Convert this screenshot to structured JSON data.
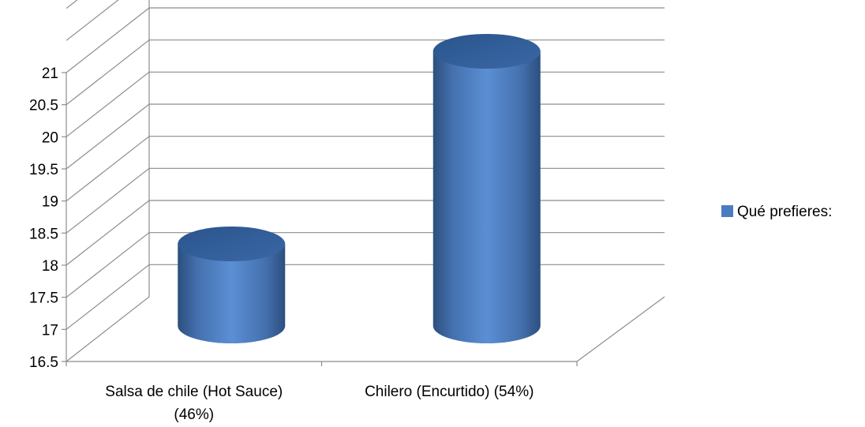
{
  "chart_data": {
    "type": "bar",
    "bar_shape": "3d-cylinder",
    "categories": [
      [
        "Salsa de chile (Hot Sauce)",
        "(46%)"
      ],
      [
        "Chilero (Encurtido) (54%)"
      ]
    ],
    "series": [
      {
        "name": "Qué prefieres:",
        "values": [
          18.0,
          21.0
        ]
      }
    ],
    "yticks": [
      "16.5",
      "17",
      "17.5",
      "18",
      "18.5",
      "19",
      "19.5",
      "20",
      "20.5",
      "21"
    ],
    "ylim": [
      16.5,
      21
    ],
    "grid": true,
    "legend": "right",
    "colors": {
      "bar_light": "#5B8FD4",
      "bar_mid": "#4A7DC0",
      "bar_dark": "#2C4F7E",
      "bar_top": "#2E5A92",
      "grid": "#8C8C8C",
      "axis": "#8C8C8C"
    }
  }
}
